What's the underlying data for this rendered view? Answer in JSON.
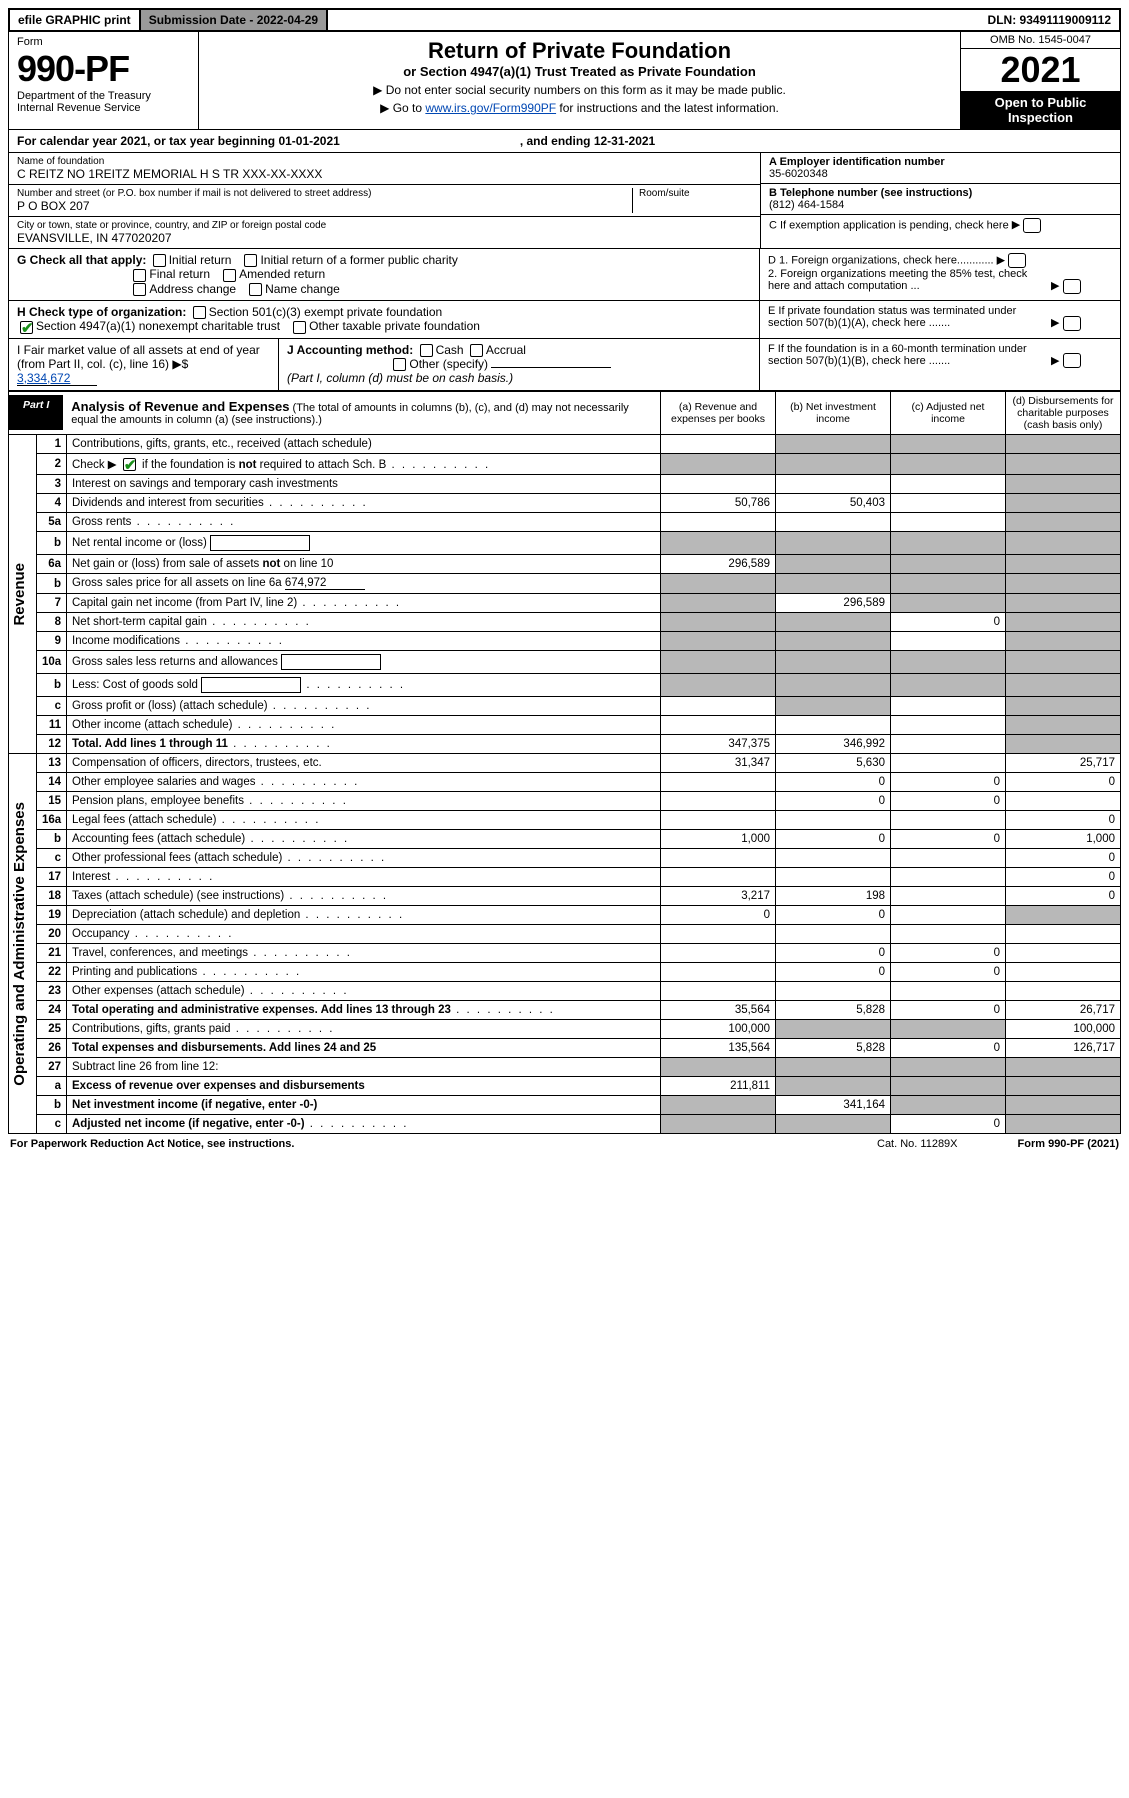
{
  "topbar": {
    "efile": "efile GRAPHIC print",
    "sub_label": "Submission Date - 2022-04-29",
    "dln": "DLN: 93491119009112"
  },
  "header": {
    "form_label": "Form",
    "form_no": "990-PF",
    "dept": "Department of the Treasury",
    "irs": "Internal Revenue Service",
    "title": "Return of Private Foundation",
    "subtitle": "or Section 4947(a)(1) Trust Treated as Private Foundation",
    "instr1": "▶ Do not enter social security numbers on this form as it may be made public.",
    "instr2_pre": "▶ Go to ",
    "instr2_link": "www.irs.gov/Form990PF",
    "instr2_post": " for instructions and the latest information.",
    "omb": "OMB No. 1545-0047",
    "year": "2021",
    "open": "Open to Public Inspection"
  },
  "calyear": {
    "text": "For calendar year 2021, or tax year beginning 01-01-2021",
    "ending": ", and ending 12-31-2021"
  },
  "info": {
    "name_label": "Name of foundation",
    "name": "C REITZ NO 1REITZ MEMORIAL H S TR XXX-XX-XXXX",
    "addr_label": "Number and street (or P.O. box number if mail is not delivered to street address)",
    "addr": "P O BOX 207",
    "room_label": "Room/suite",
    "city_label": "City or town, state or province, country, and ZIP or foreign postal code",
    "city": "EVANSVILLE, IN  477020207",
    "ein_label": "A Employer identification number",
    "ein": "35-6020348",
    "tel_label": "B Telephone number (see instructions)",
    "tel": "(812) 464-1584",
    "c_label": "C If exemption application is pending, check here",
    "d1": "D 1. Foreign organizations, check here............",
    "d2": "2. Foreign organizations meeting the 85% test, check here and attach computation ...",
    "e": "E  If private foundation status was terminated under section 507(b)(1)(A), check here .......",
    "f": "F  If the foundation is in a 60-month termination under section 507(b)(1)(B), check here .......",
    "g_label": "G Check all that apply:",
    "g_opts": [
      "Initial return",
      "Initial return of a former public charity",
      "Final return",
      "Amended return",
      "Address change",
      "Name change"
    ],
    "h_label": "H Check type of organization:",
    "h_501c3": "Section 501(c)(3) exempt private foundation",
    "h_4947": "Section 4947(a)(1) nonexempt charitable trust",
    "h_other": "Other taxable private foundation",
    "i_label": "I Fair market value of all assets at end of year (from Part II, col. (c), line 16)",
    "i_val": "3,334,672",
    "j_label": "J Accounting method:",
    "j_cash": "Cash",
    "j_accrual": "Accrual",
    "j_other": "Other (specify)",
    "j_note": "(Part I, column (d) must be on cash basis.)"
  },
  "part1": {
    "tab": "Part I",
    "title": "Analysis of Revenue and Expenses",
    "note": "(The total of amounts in columns (b), (c), and (d) may not necessarily equal the amounts in column (a) (see instructions).)",
    "col_a": "(a)   Revenue and expenses per books",
    "col_b": "(b)   Net investment income",
    "col_c": "(c)   Adjusted net income",
    "col_d": "(d)   Disbursements for charitable purposes (cash basis only)",
    "vert_rev": "Revenue",
    "vert_exp": "Operating and Administrative Expenses"
  },
  "rows": [
    {
      "ln": "1",
      "desc": "Contributions, gifts, grants, etc., received (attach schedule)",
      "a": "",
      "b": "grey",
      "c": "grey",
      "d": "grey"
    },
    {
      "ln": "2",
      "desc": "Check ▶ ☑ if the foundation is not required to attach Sch. B",
      "dots": true,
      "a": "grey",
      "b": "grey",
      "c": "grey",
      "d": "grey"
    },
    {
      "ln": "3",
      "desc": "Interest on savings and temporary cash investments",
      "a": "",
      "b": "",
      "c": "",
      "d": "grey"
    },
    {
      "ln": "4",
      "desc": "Dividends and interest from securities",
      "dots": true,
      "a": "50,786",
      "b": "50,403",
      "c": "",
      "d": "grey"
    },
    {
      "ln": "5a",
      "desc": "Gross rents",
      "dots": true,
      "a": "",
      "b": "",
      "c": "",
      "d": "grey"
    },
    {
      "ln": "b",
      "desc": "Net rental income or (loss)",
      "sub": true,
      "a": "grey",
      "b": "grey",
      "c": "grey",
      "d": "grey"
    },
    {
      "ln": "6a",
      "desc": "Net gain or (loss) from sale of assets not on line 10",
      "a": "296,589",
      "b": "grey",
      "c": "grey",
      "d": "grey"
    },
    {
      "ln": "b",
      "desc": "Gross sales price for all assets on line 6a",
      "sub": true,
      "subval": "674,972",
      "a": "grey",
      "b": "grey",
      "c": "grey",
      "d": "grey"
    },
    {
      "ln": "7",
      "desc": "Capital gain net income (from Part IV, line 2)",
      "dots": true,
      "a": "grey",
      "b": "296,589",
      "c": "grey",
      "d": "grey"
    },
    {
      "ln": "8",
      "desc": "Net short-term capital gain",
      "dots": true,
      "a": "grey",
      "b": "grey",
      "c": "0",
      "d": "grey"
    },
    {
      "ln": "9",
      "desc": "Income modifications",
      "dots": true,
      "a": "grey",
      "b": "grey",
      "c": "",
      "d": "grey"
    },
    {
      "ln": "10a",
      "desc": "Gross sales less returns and allowances",
      "sub": true,
      "a": "grey",
      "b": "grey",
      "c": "grey",
      "d": "grey"
    },
    {
      "ln": "b",
      "desc": "Less: Cost of goods sold",
      "dots": true,
      "sub": true,
      "a": "grey",
      "b": "grey",
      "c": "grey",
      "d": "grey"
    },
    {
      "ln": "c",
      "desc": "Gross profit or (loss) (attach schedule)",
      "dots": true,
      "a": "",
      "b": "grey",
      "c": "",
      "d": "grey"
    },
    {
      "ln": "11",
      "desc": "Other income (attach schedule)",
      "dots": true,
      "a": "",
      "b": "",
      "c": "",
      "d": "grey"
    },
    {
      "ln": "12",
      "desc": "Total. Add lines 1 through 11",
      "dots": true,
      "bold": true,
      "a": "347,375",
      "b": "346,992",
      "c": "",
      "d": "grey"
    },
    {
      "ln": "13",
      "desc": "Compensation of officers, directors, trustees, etc.",
      "a": "31,347",
      "b": "5,630",
      "c": "",
      "d": "25,717"
    },
    {
      "ln": "14",
      "desc": "Other employee salaries and wages",
      "dots": true,
      "a": "",
      "b": "0",
      "c": "0",
      "d": "0"
    },
    {
      "ln": "15",
      "desc": "Pension plans, employee benefits",
      "dots": true,
      "a": "",
      "b": "0",
      "c": "0",
      "d": ""
    },
    {
      "ln": "16a",
      "desc": "Legal fees (attach schedule)",
      "dots": true,
      "a": "",
      "b": "",
      "c": "",
      "d": "0"
    },
    {
      "ln": "b",
      "desc": "Accounting fees (attach schedule)",
      "dots": true,
      "a": "1,000",
      "b": "0",
      "c": "0",
      "d": "1,000"
    },
    {
      "ln": "c",
      "desc": "Other professional fees (attach schedule)",
      "dots": true,
      "a": "",
      "b": "",
      "c": "",
      "d": "0"
    },
    {
      "ln": "17",
      "desc": "Interest",
      "dots": true,
      "a": "",
      "b": "",
      "c": "",
      "d": "0"
    },
    {
      "ln": "18",
      "desc": "Taxes (attach schedule) (see instructions)",
      "dots": true,
      "a": "3,217",
      "b": "198",
      "c": "",
      "d": "0"
    },
    {
      "ln": "19",
      "desc": "Depreciation (attach schedule) and depletion",
      "dots": true,
      "a": "0",
      "b": "0",
      "c": "",
      "d": "grey"
    },
    {
      "ln": "20",
      "desc": "Occupancy",
      "dots": true,
      "a": "",
      "b": "",
      "c": "",
      "d": ""
    },
    {
      "ln": "21",
      "desc": "Travel, conferences, and meetings",
      "dots": true,
      "a": "",
      "b": "0",
      "c": "0",
      "d": ""
    },
    {
      "ln": "22",
      "desc": "Printing and publications",
      "dots": true,
      "a": "",
      "b": "0",
      "c": "0",
      "d": ""
    },
    {
      "ln": "23",
      "desc": "Other expenses (attach schedule)",
      "dots": true,
      "a": "",
      "b": "",
      "c": "",
      "d": ""
    },
    {
      "ln": "24",
      "desc": "Total operating and administrative expenses. Add lines 13 through 23",
      "dots": true,
      "bold": true,
      "a": "35,564",
      "b": "5,828",
      "c": "0",
      "d": "26,717"
    },
    {
      "ln": "25",
      "desc": "Contributions, gifts, grants paid",
      "dots": true,
      "a": "100,000",
      "b": "grey",
      "c": "grey",
      "d": "100,000"
    },
    {
      "ln": "26",
      "desc": "Total expenses and disbursements. Add lines 24 and 25",
      "bold": true,
      "a": "135,564",
      "b": "5,828",
      "c": "0",
      "d": "126,717"
    },
    {
      "ln": "27",
      "desc": "Subtract line 26 from line 12:",
      "a": "grey",
      "b": "grey",
      "c": "grey",
      "d": "grey"
    },
    {
      "ln": "a",
      "desc": "Excess of revenue over expenses and disbursements",
      "bold": true,
      "a": "211,811",
      "b": "grey",
      "c": "grey",
      "d": "grey"
    },
    {
      "ln": "b",
      "desc": "Net investment income (if negative, enter -0-)",
      "bold": true,
      "a": "grey",
      "b": "341,164",
      "c": "grey",
      "d": "grey"
    },
    {
      "ln": "c",
      "desc": "Adjusted net income (if negative, enter -0-)",
      "dots": true,
      "bold": true,
      "a": "grey",
      "b": "grey",
      "c": "0",
      "d": "grey"
    }
  ],
  "footer": {
    "pra": "For Paperwork Reduction Act Notice, see instructions.",
    "cat": "Cat. No. 11289X",
    "form": "Form 990-PF (2021)"
  }
}
